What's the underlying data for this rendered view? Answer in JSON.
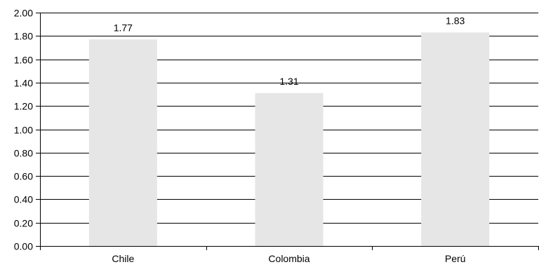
{
  "chart_data": {
    "type": "bar",
    "title": "",
    "xlabel": "",
    "ylabel": "",
    "categories": [
      "Chile",
      "Colombia",
      "Perú"
    ],
    "values": [
      1.77,
      1.31,
      1.83
    ],
    "value_labels": [
      "1.77",
      "1.31",
      "1.83"
    ],
    "ylim": [
      0,
      2.0
    ],
    "yticks": [
      0.0,
      0.2,
      0.4,
      0.6,
      0.8,
      1.0,
      1.2,
      1.4,
      1.6,
      1.8,
      2.0
    ],
    "ytick_labels": [
      "0.00",
      "0.20",
      "0.40",
      "0.60",
      "0.80",
      "1.00",
      "1.20",
      "1.40",
      "1.60",
      "1.80",
      "2.00"
    ],
    "grid": true,
    "legend": "none",
    "colors": {
      "bar": "#e6e6e6",
      "grid": "#000000"
    }
  }
}
